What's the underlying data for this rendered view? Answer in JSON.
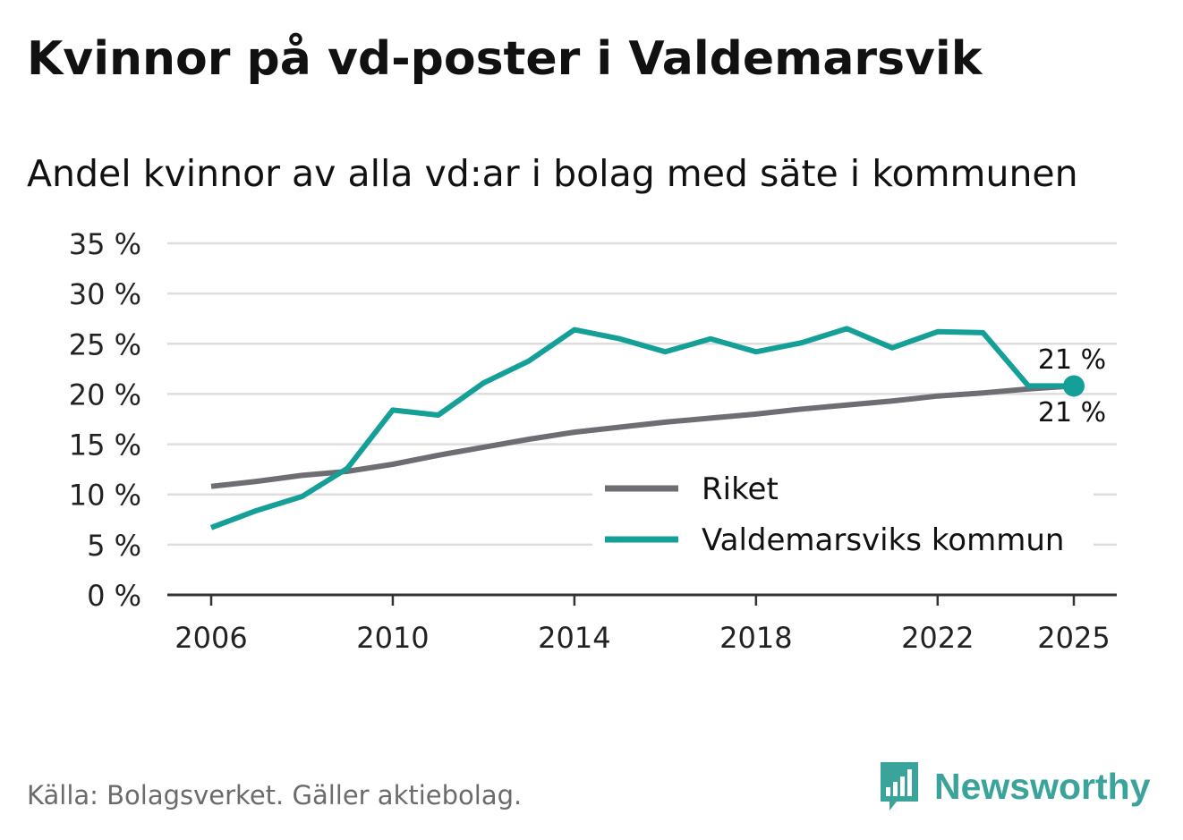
{
  "header": {
    "title": "Kvinnor på vd-poster i Valdemarsvik",
    "subtitle": "Andel kvinnor av alla vd:ar i bolag med säte i kommunen"
  },
  "footer": {
    "source": "Källa: Bolagsverket. Gäller aktiebolag.",
    "brand": "Newsworthy",
    "brand_icon": "bar-chart-speech-bubble-icon"
  },
  "colors": {
    "riket": "#6e6d73",
    "kommun": "#14a097",
    "grid": "#dedede",
    "axis": "#333333",
    "brand": "#3aa39a"
  },
  "chart_data": {
    "type": "line",
    "title": "Kvinnor på vd-poster i Valdemarsvik",
    "subtitle": "Andel kvinnor av alla vd:ar i bolag med säte i kommunen",
    "xlabel": "",
    "ylabel": "",
    "x": [
      2006,
      2007,
      2008,
      2009,
      2010,
      2011,
      2012,
      2013,
      2014,
      2015,
      2016,
      2017,
      2018,
      2019,
      2020,
      2021,
      2022,
      2023,
      2024,
      2025
    ],
    "xlim": [
      2006,
      2025
    ],
    "ylim": [
      0,
      35
    ],
    "x_ticks": [
      2006,
      2010,
      2014,
      2018,
      2022,
      2025
    ],
    "y_ticks": [
      0,
      5,
      10,
      15,
      20,
      25,
      30,
      35
    ],
    "y_tick_labels": [
      "0 %",
      "5 %",
      "10 %",
      "15 %",
      "20 %",
      "25 %",
      "30 %",
      "35 %"
    ],
    "grid": true,
    "legend_position": "bottom-right",
    "series": [
      {
        "name": "Riket",
        "color": "#6e6d73",
        "values": [
          10.8,
          11.3,
          11.9,
          12.3,
          13.0,
          13.9,
          14.7,
          15.5,
          16.2,
          16.7,
          17.2,
          17.6,
          18.0,
          18.5,
          18.9,
          19.3,
          19.8,
          20.1,
          20.5,
          20.8
        ],
        "end_label": "21 %"
      },
      {
        "name": "Valdemarsviks kommun",
        "color": "#14a097",
        "values": [
          6.7,
          8.4,
          9.8,
          12.6,
          18.4,
          17.9,
          21.1,
          23.3,
          26.4,
          25.5,
          24.2,
          25.5,
          24.2,
          25.1,
          26.5,
          24.6,
          26.2,
          26.1,
          20.8,
          20.8
        ],
        "end_label": "21 %"
      }
    ]
  }
}
